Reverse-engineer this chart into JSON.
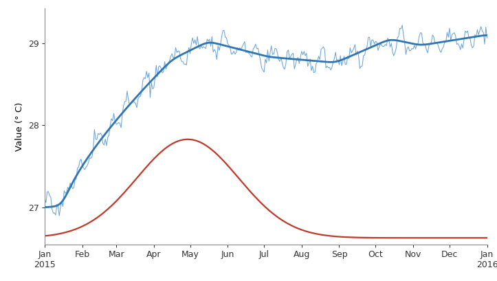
{
  "ylabel": "Value (° C)",
  "ylim": [
    26.55,
    29.42
  ],
  "yticks": [
    27,
    28,
    29
  ],
  "background_color": "#ffffff",
  "line_light_blue_color": "#5b9bd5",
  "line_dark_blue_color": "#2e75b6",
  "line_red_color": "#c0392b",
  "months_labels": [
    "Jan\n2015",
    "Feb",
    "Mar",
    "Apr",
    "May",
    "Jun",
    "Jul",
    "Aug",
    "Sep",
    "Oct",
    "Nov",
    "Dec",
    "Jan\n2016"
  ],
  "spine_color": "#888888",
  "tick_label_color": "#333333"
}
